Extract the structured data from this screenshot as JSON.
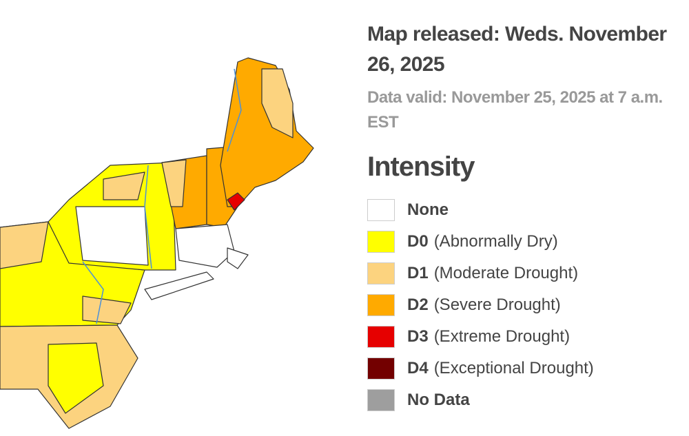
{
  "header": {
    "title": "Map released: Weds. November 26, 2025",
    "subtitle": "Data valid: November 25, 2025 at 7 a.m. EST"
  },
  "legend": {
    "title": "Intensity",
    "items": [
      {
        "code": "None",
        "color": "#ffffff"
      },
      {
        "code": "D0",
        "description": "(Abnormally Dry)",
        "color": "#ffff00"
      },
      {
        "code": "D1",
        "description": "(Moderate Drought)",
        "color": "#fcd37f"
      },
      {
        "code": "D2",
        "description": "(Severe Drought)",
        "color": "#ffaa00"
      },
      {
        "code": "D3",
        "description": "(Extreme Drought)",
        "color": "#e60000"
      },
      {
        "code": "D4",
        "description": "(Exceptional Drought)",
        "color": "#730000"
      },
      {
        "code": "No Data",
        "color": "#9e9e9e"
      }
    ]
  }
}
